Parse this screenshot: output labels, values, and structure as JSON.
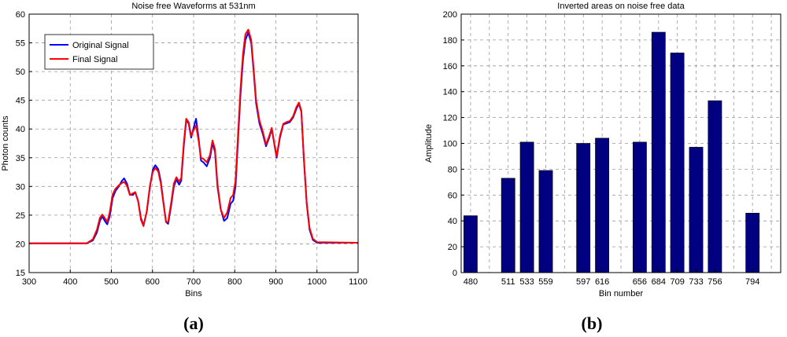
{
  "panel_labels": [
    "(a)",
    "(b)"
  ],
  "chart_data": [
    {
      "type": "line",
      "title": "Noise free Waveforms at 531nm",
      "xlabel": "Bins",
      "ylabel": "Photon counts",
      "xlim": [
        300,
        1100
      ],
      "ylim": [
        15,
        60
      ],
      "xticks": [
        300,
        400,
        500,
        600,
        700,
        800,
        900,
        1000,
        1100
      ],
      "yticks": [
        15,
        20,
        25,
        30,
        35,
        40,
        45,
        50,
        55,
        60
      ],
      "grid": true,
      "legend_position": "top-left",
      "series": [
        {
          "name": "Original Signal",
          "color": "#0000ff",
          "points": [
            [
              300,
              20.1
            ],
            [
              440,
              20.1
            ],
            [
              455,
              20.6
            ],
            [
              465,
              22
            ],
            [
              472,
              24
            ],
            [
              478,
              24.8
            ],
            [
              484,
              24
            ],
            [
              490,
              23.4
            ],
            [
              496,
              24.8
            ],
            [
              503,
              28
            ],
            [
              510,
              29.2
            ],
            [
              518,
              30
            ],
            [
              526,
              31
            ],
            [
              531,
              31.4
            ],
            [
              538,
              30.5
            ],
            [
              545,
              28.6
            ],
            [
              552,
              28.5
            ],
            [
              558,
              29
            ],
            [
              565,
              27.5
            ],
            [
              572,
              24.5
            ],
            [
              578,
              23.2
            ],
            [
              586,
              25.5
            ],
            [
              594,
              30
            ],
            [
              601,
              33
            ],
            [
              607,
              33.7
            ],
            [
              614,
              33
            ],
            [
              620,
              31
            ],
            [
              627,
              27
            ],
            [
              633,
              23.8
            ],
            [
              638,
              23.5
            ],
            [
              645,
              26.5
            ],
            [
              652,
              30
            ],
            [
              658,
              31.2
            ],
            [
              665,
              30.3
            ],
            [
              670,
              31
            ],
            [
              676,
              37
            ],
            [
              682,
              41.5
            ],
            [
              688,
              41
            ],
            [
              694,
              38.5
            ],
            [
              700,
              40.2
            ],
            [
              706,
              41.8
            ],
            [
              712,
              38.5
            ],
            [
              718,
              34.5
            ],
            [
              724,
              34.2
            ],
            [
              732,
              33.5
            ],
            [
              740,
              35
            ],
            [
              746,
              37.5
            ],
            [
              752,
              36
            ],
            [
              758,
              30
            ],
            [
              766,
              26
            ],
            [
              774,
              24
            ],
            [
              782,
              24.5
            ],
            [
              790,
              27
            ],
            [
              796,
              27.5
            ],
            [
              802,
              30
            ],
            [
              808,
              38
            ],
            [
              814,
              46
            ],
            [
              820,
              52
            ],
            [
              826,
              55.5
            ],
            [
              833,
              56.8
            ],
            [
              840,
              55
            ],
            [
              846,
              50
            ],
            [
              852,
              44.5
            ],
            [
              860,
              41
            ],
            [
              868,
              39.2
            ],
            [
              876,
              37
            ],
            [
              884,
              38.5
            ],
            [
              890,
              40
            ],
            [
              896,
              37.5
            ],
            [
              902,
              35
            ],
            [
              910,
              38.5
            ],
            [
              918,
              40.8
            ],
            [
              926,
              41
            ],
            [
              934,
              41.2
            ],
            [
              942,
              42
            ],
            [
              950,
              43.5
            ],
            [
              956,
              44.4
            ],
            [
              962,
              43
            ],
            [
              968,
              35
            ],
            [
              975,
              27
            ],
            [
              982,
              22.5
            ],
            [
              990,
              20.7
            ],
            [
              1000,
              20.2
            ],
            [
              1100,
              20.2
            ]
          ]
        },
        {
          "name": "Final Signal",
          "color": "#ff0000",
          "points": [
            [
              300,
              20.1
            ],
            [
              440,
              20.1
            ],
            [
              455,
              20.8
            ],
            [
              465,
              22.5
            ],
            [
              472,
              24.5
            ],
            [
              478,
              25.1
            ],
            [
              484,
              24.5
            ],
            [
              490,
              23.8
            ],
            [
              496,
              25.5
            ],
            [
              503,
              28.6
            ],
            [
              510,
              29.6
            ],
            [
              518,
              30.2
            ],
            [
              526,
              30.6
            ],
            [
              531,
              30.8
            ],
            [
              538,
              30.1
            ],
            [
              545,
              28.5
            ],
            [
              552,
              28.8
            ],
            [
              558,
              29
            ],
            [
              565,
              27.4
            ],
            [
              572,
              24.2
            ],
            [
              578,
              23.1
            ],
            [
              586,
              25.6
            ],
            [
              594,
              30.2
            ],
            [
              601,
              32.6
            ],
            [
              607,
              33.2
            ],
            [
              614,
              32.6
            ],
            [
              620,
              30.6
            ],
            [
              627,
              26.8
            ],
            [
              633,
              23.8
            ],
            [
              638,
              23.8
            ],
            [
              645,
              27
            ],
            [
              652,
              30.5
            ],
            [
              658,
              31.6
            ],
            [
              665,
              30.8
            ],
            [
              670,
              31.5
            ],
            [
              676,
              37.5
            ],
            [
              682,
              41.8
            ],
            [
              688,
              41.2
            ],
            [
              694,
              38.8
            ],
            [
              700,
              39.8
            ],
            [
              706,
              40.6
            ],
            [
              712,
              38
            ],
            [
              718,
              35
            ],
            [
              724,
              34.8
            ],
            [
              732,
              34.2
            ],
            [
              740,
              35.5
            ],
            [
              746,
              38
            ],
            [
              752,
              36.5
            ],
            [
              758,
              30.5
            ],
            [
              766,
              26
            ],
            [
              774,
              24.5
            ],
            [
              782,
              25.5
            ],
            [
              790,
              28
            ],
            [
              796,
              28.5
            ],
            [
              802,
              31
            ],
            [
              808,
              39
            ],
            [
              814,
              47
            ],
            [
              820,
              53
            ],
            [
              826,
              56.5
            ],
            [
              833,
              57.3
            ],
            [
              840,
              55.5
            ],
            [
              846,
              50.5
            ],
            [
              852,
              45
            ],
            [
              860,
              41.5
            ],
            [
              868,
              39.6
            ],
            [
              876,
              37.3
            ],
            [
              884,
              38.8
            ],
            [
              890,
              40.2
            ],
            [
              896,
              37.6
            ],
            [
              902,
              35.2
            ],
            [
              910,
              38.8
            ],
            [
              918,
              40.9
            ],
            [
              926,
              41.2
            ],
            [
              934,
              41.4
            ],
            [
              942,
              42.2
            ],
            [
              950,
              43.8
            ],
            [
              956,
              44.6
            ],
            [
              962,
              43.2
            ],
            [
              968,
              35.2
            ],
            [
              975,
              27.2
            ],
            [
              982,
              22.8
            ],
            [
              990,
              20.9
            ],
            [
              1000,
              20.3
            ],
            [
              1100,
              20.2
            ]
          ]
        }
      ]
    },
    {
      "type": "bar",
      "title": "Inverted areas on noise free data",
      "xlabel": "Bin number",
      "ylabel": "Amplitude",
      "xlim": [
        0.5,
        17.5
      ],
      "ylim": [
        0,
        200
      ],
      "yticks": [
        0,
        20,
        40,
        60,
        80,
        100,
        120,
        140,
        160,
        180,
        200
      ],
      "grid": true,
      "color": "#000080",
      "tick_labels": [
        {
          "label": "480",
          "pos": 1
        },
        {
          "label": "511",
          "pos": 3
        },
        {
          "label": "533",
          "pos": 4
        },
        {
          "label": "559",
          "pos": 5
        },
        {
          "label": "597",
          "pos": 7
        },
        {
          "label": "616",
          "pos": 8
        },
        {
          "label": "656",
          "pos": 10
        },
        {
          "label": "684",
          "pos": 11
        },
        {
          "label": "709",
          "pos": 12
        },
        {
          "label": "733",
          "pos": 13
        },
        {
          "label": "756",
          "pos": 14
        },
        {
          "label": "794",
          "pos": 16
        }
      ],
      "grid_positions": [
        1,
        2,
        3,
        4,
        5,
        6,
        7,
        8,
        9,
        10,
        11,
        12,
        13,
        14,
        15,
        16,
        17
      ],
      "bars": [
        {
          "pos": 1,
          "value": 44
        },
        {
          "pos": 3,
          "value": 73
        },
        {
          "pos": 4,
          "value": 101
        },
        {
          "pos": 5,
          "value": 79
        },
        {
          "pos": 7,
          "value": 100
        },
        {
          "pos": 8,
          "value": 104
        },
        {
          "pos": 10,
          "value": 101
        },
        {
          "pos": 11,
          "value": 186
        },
        {
          "pos": 12,
          "value": 170
        },
        {
          "pos": 13,
          "value": 97
        },
        {
          "pos": 14,
          "value": 133
        },
        {
          "pos": 16,
          "value": 46
        }
      ]
    }
  ]
}
